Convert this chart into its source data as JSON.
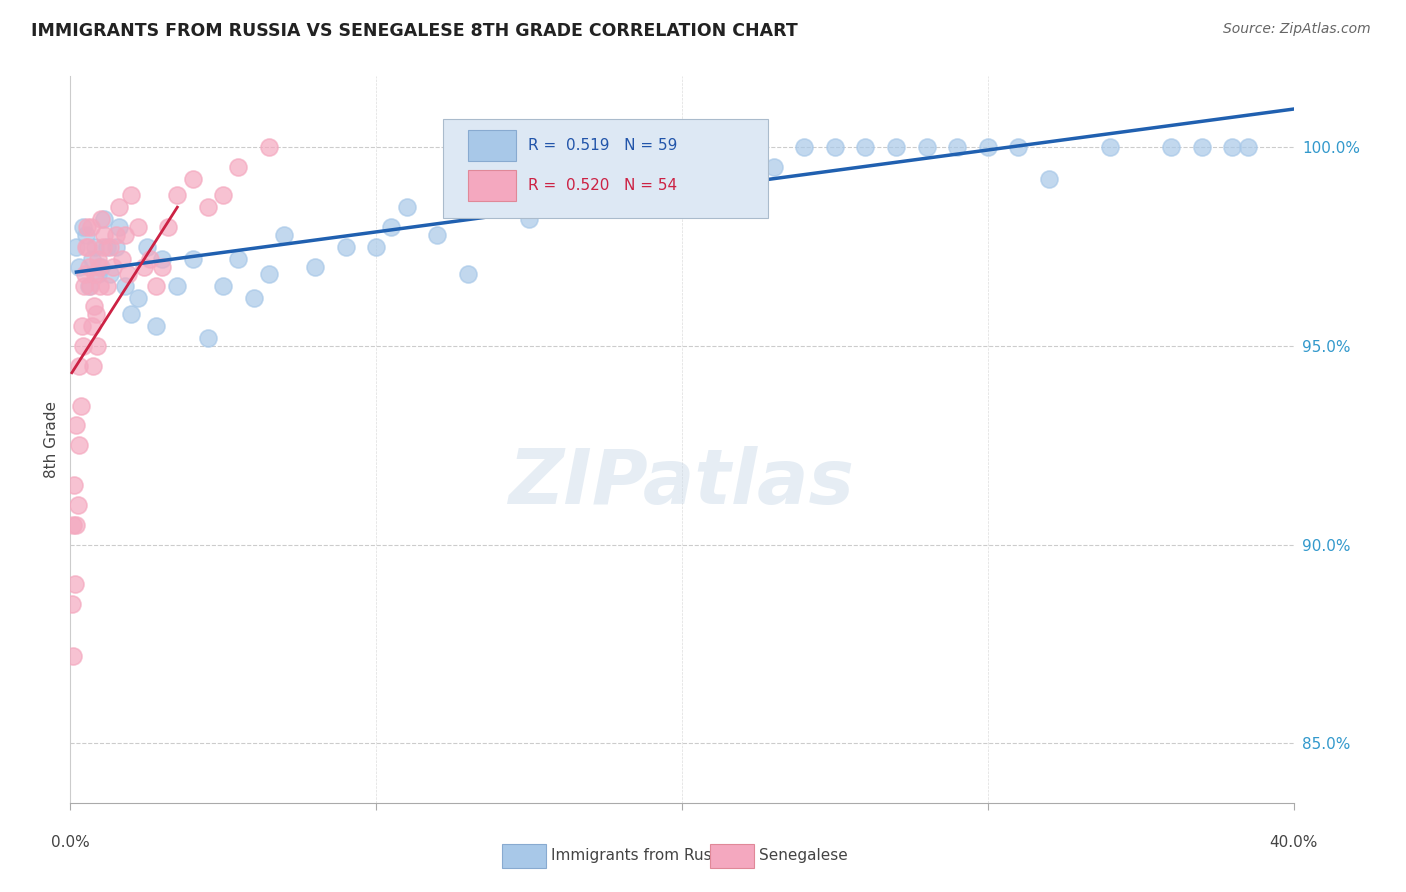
{
  "title": "IMMIGRANTS FROM RUSSIA VS SENEGALESE 8TH GRADE CORRELATION CHART",
  "source": "Source: ZipAtlas.com",
  "ylabel": "8th Grade",
  "yticks": [
    85.0,
    90.0,
    95.0,
    100.0
  ],
  "ytick_labels": [
    "85.0%",
    "90.0%",
    "95.0%",
    "100.0%"
  ],
  "xmin": 0.0,
  "xmax": 40.0,
  "ymin": 83.5,
  "ymax": 101.8,
  "r_russia": 0.519,
  "n_russia": 59,
  "r_senegal": 0.52,
  "n_senegal": 54,
  "russia_color": "#a8c8e8",
  "senegal_color": "#f4a8bf",
  "russia_line_color": "#2060b0",
  "senegal_line_color": "#cc2244",
  "legend_label_russia": "Immigrants from Russia",
  "legend_label_senegal": "Senegalese",
  "russia_x": [
    0.2,
    0.3,
    0.4,
    0.5,
    0.6,
    0.7,
    0.8,
    0.9,
    1.0,
    1.1,
    1.2,
    1.3,
    1.5,
    1.6,
    1.8,
    2.0,
    2.2,
    2.5,
    2.8,
    3.0,
    3.5,
    4.0,
    4.5,
    5.0,
    5.5,
    6.0,
    6.5,
    7.0,
    8.0,
    9.0,
    10.0,
    10.5,
    11.0,
    12.0,
    13.0,
    14.0,
    15.0,
    16.0,
    17.5,
    18.0,
    19.0,
    20.0,
    21.0,
    22.0,
    23.0,
    24.0,
    25.0,
    26.0,
    27.0,
    28.0,
    29.0,
    30.0,
    31.0,
    32.0,
    34.0,
    36.0,
    37.0,
    38.0,
    38.5
  ],
  "russia_y": [
    97.5,
    97.0,
    98.0,
    97.8,
    96.5,
    97.2,
    97.5,
    96.8,
    97.0,
    98.2,
    97.5,
    96.8,
    97.5,
    98.0,
    96.5,
    95.8,
    96.2,
    97.5,
    95.5,
    97.2,
    96.5,
    97.2,
    95.2,
    96.5,
    97.2,
    96.2,
    96.8,
    97.8,
    97.0,
    97.5,
    97.5,
    98.0,
    98.5,
    97.8,
    96.8,
    98.5,
    98.2,
    98.5,
    100.0,
    100.0,
    99.8,
    100.0,
    100.0,
    100.0,
    99.5,
    100.0,
    100.0,
    100.0,
    100.0,
    100.0,
    100.0,
    100.0,
    100.0,
    99.2,
    100.0,
    100.0,
    100.0,
    100.0,
    100.0
  ],
  "senegal_x": [
    0.05,
    0.1,
    0.15,
    0.2,
    0.25,
    0.3,
    0.35,
    0.4,
    0.45,
    0.5,
    0.55,
    0.6,
    0.65,
    0.7,
    0.75,
    0.8,
    0.85,
    0.9,
    0.95,
    1.0,
    1.1,
    1.2,
    1.3,
    1.4,
    1.5,
    1.6,
    1.7,
    1.8,
    1.9,
    2.0,
    2.2,
    2.4,
    2.6,
    2.8,
    3.0,
    3.2,
    3.5,
    4.0,
    4.5,
    5.0,
    5.5,
    6.5,
    0.08,
    0.12,
    0.18,
    0.28,
    0.38,
    0.48,
    0.58,
    0.68,
    0.78,
    0.88,
    0.98,
    1.08
  ],
  "senegal_y": [
    88.5,
    87.2,
    89.0,
    90.5,
    91.0,
    92.5,
    93.5,
    95.0,
    96.5,
    97.5,
    98.0,
    97.0,
    96.5,
    95.5,
    94.5,
    96.8,
    95.8,
    97.2,
    97.0,
    98.2,
    97.8,
    96.5,
    97.5,
    97.0,
    97.8,
    98.5,
    97.2,
    97.8,
    96.8,
    98.8,
    98.0,
    97.0,
    97.2,
    96.5,
    97.0,
    98.0,
    98.8,
    99.2,
    98.5,
    98.8,
    99.5,
    100.0,
    90.5,
    91.5,
    93.0,
    94.5,
    95.5,
    96.8,
    97.5,
    98.0,
    96.0,
    95.0,
    96.5,
    97.5
  ]
}
